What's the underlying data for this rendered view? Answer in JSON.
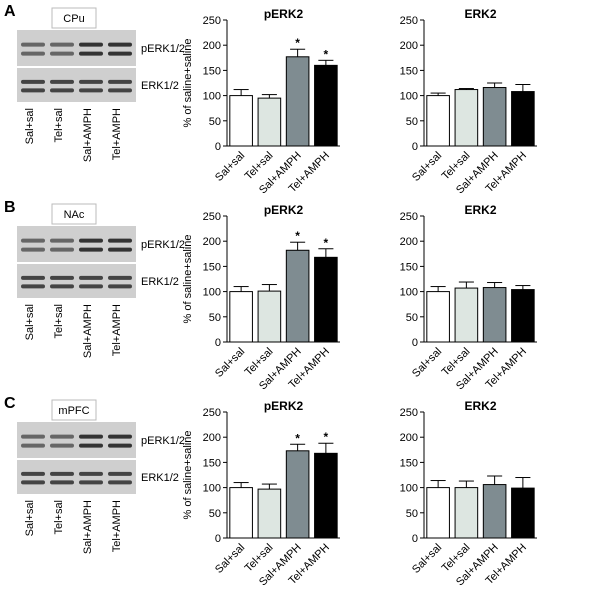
{
  "panels": [
    {
      "letter": "A",
      "region": "CPu",
      "blot_labels": [
        "pERK1/2",
        "ERK1/2"
      ],
      "lanes": [
        "Sal+sal",
        "Tel+sal",
        "Sal+AMPH",
        "Tel+AMPH"
      ]
    },
    {
      "letter": "B",
      "region": "NAc",
      "blot_labels": [
        "pERK1/2",
        "ERK1/2"
      ],
      "lanes": [
        "Sal+sal",
        "Tel+sal",
        "Sal+AMPH",
        "Tel+AMPH"
      ]
    },
    {
      "letter": "C",
      "region": "mPFC",
      "blot_labels": [
        "pERK1/2",
        "ERK1/2"
      ],
      "lanes": [
        "Sal+sal",
        "Tel+sal",
        "Sal+AMPH",
        "Tel+AMPH"
      ]
    }
  ],
  "chart_data": [
    {
      "type": "bar",
      "title": "pERK2",
      "ylabel": "% of saline+saline",
      "categories": [
        "Sal+sal",
        "Tel+sal",
        "Sal+AMPH",
        "Tel+AMPH"
      ],
      "values": [
        100,
        95,
        177,
        160
      ],
      "errors": [
        12,
        7,
        15,
        10
      ],
      "significance": [
        null,
        null,
        "*",
        "*"
      ],
      "colors": [
        "#ffffff",
        "#dde6e1",
        "#7f8c91",
        "#000000"
      ],
      "ylim": [
        0,
        250
      ],
      "yticks": [
        0,
        50,
        100,
        150,
        200,
        250
      ]
    },
    {
      "type": "bar",
      "title": "ERK2",
      "categories": [
        "Sal+sal",
        "Tel+sal",
        "Sal+AMPH",
        "Tel+AMPH"
      ],
      "values": [
        100,
        112,
        116,
        108
      ],
      "errors": [
        5,
        2,
        9,
        14
      ],
      "colors": [
        "#ffffff",
        "#dde6e1",
        "#7f8c91",
        "#000000"
      ],
      "ylim": [
        0,
        250
      ],
      "yticks": [
        0,
        50,
        100,
        150,
        200,
        250
      ]
    },
    {
      "type": "bar",
      "title": "pERK2",
      "ylabel": "% of saline+saline",
      "categories": [
        "Sal+sal",
        "Tel+sal",
        "Sal+AMPH",
        "Tel+AMPH"
      ],
      "values": [
        100,
        101,
        182,
        168
      ],
      "errors": [
        10,
        13,
        16,
        17
      ],
      "significance": [
        null,
        null,
        "*",
        "*"
      ],
      "colors": [
        "#ffffff",
        "#dde6e1",
        "#7f8c91",
        "#000000"
      ],
      "ylim": [
        0,
        250
      ],
      "yticks": [
        0,
        50,
        100,
        150,
        200,
        250
      ]
    },
    {
      "type": "bar",
      "title": "ERK2",
      "categories": [
        "Sal+sal",
        "Tel+sal",
        "Sal+AMPH",
        "Tel+AMPH"
      ],
      "values": [
        100,
        107,
        108,
        104
      ],
      "errors": [
        10,
        12,
        10,
        8
      ],
      "colors": [
        "#ffffff",
        "#dde6e1",
        "#7f8c91",
        "#000000"
      ],
      "ylim": [
        0,
        250
      ],
      "yticks": [
        0,
        50,
        100,
        150,
        200,
        250
      ]
    },
    {
      "type": "bar",
      "title": "pERK2",
      "ylabel": "% of saline+saline",
      "categories": [
        "Sal+sal",
        "Tel+sal",
        "Sal+AMPH",
        "Tel+AMPH"
      ],
      "values": [
        100,
        97,
        173,
        168
      ],
      "errors": [
        10,
        10,
        13,
        20
      ],
      "significance": [
        null,
        null,
        "*",
        "*"
      ],
      "colors": [
        "#ffffff",
        "#dde6e1",
        "#7f8c91",
        "#000000"
      ],
      "ylim": [
        0,
        250
      ],
      "yticks": [
        0,
        50,
        100,
        150,
        200,
        250
      ]
    },
    {
      "type": "bar",
      "title": "ERK2",
      "categories": [
        "Sal+sal",
        "Tel+sal",
        "Sal+AMPH",
        "Tel+AMPH"
      ],
      "values": [
        100,
        100,
        106,
        99
      ],
      "errors": [
        14,
        13,
        17,
        21
      ],
      "colors": [
        "#ffffff",
        "#dde6e1",
        "#7f8c91",
        "#000000"
      ],
      "ylim": [
        0,
        250
      ],
      "yticks": [
        0,
        50,
        100,
        150,
        200,
        250
      ]
    }
  ]
}
